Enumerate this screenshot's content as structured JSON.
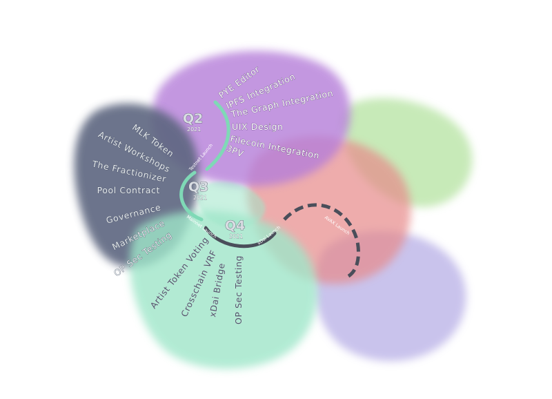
{
  "colors": {
    "purple": "#b57ed9",
    "slate": "#5d6680",
    "mint": "#9fe6c9",
    "coral": "#e78a8a",
    "lime": "#b5e3a1",
    "lavender": "#b7afe6",
    "arc_mint": "#7fd9b6",
    "arc_dark": "#4a4e5a"
  },
  "quarters": {
    "q2": {
      "label": "Q2",
      "year": "2021",
      "items": [
        "PYE Editor",
        "IPFS Integration",
        "The Graph Integration",
        "UIX Design",
        "Filecoin Integration",
        "3PV"
      ]
    },
    "q3": {
      "label": "Q3",
      "year": "2021",
      "items": [
        "MLK Token",
        "Artist Workshops",
        "The Fractionizer",
        "Pool Contract",
        "Governance",
        "Marketplace",
        "OP Sec Testing"
      ]
    },
    "q4": {
      "label": "Q4",
      "year": "2021",
      "items": [
        "Artist Token Voting",
        "Crosschain VRF",
        "xDai Bridge",
        "OP Sec Testing"
      ]
    }
  },
  "launches": {
    "testnet": "Testnet Launch",
    "mainnet": "Mainnet Launch",
    "xdai": "xDai Launch",
    "avax": "AVAX Launch"
  }
}
